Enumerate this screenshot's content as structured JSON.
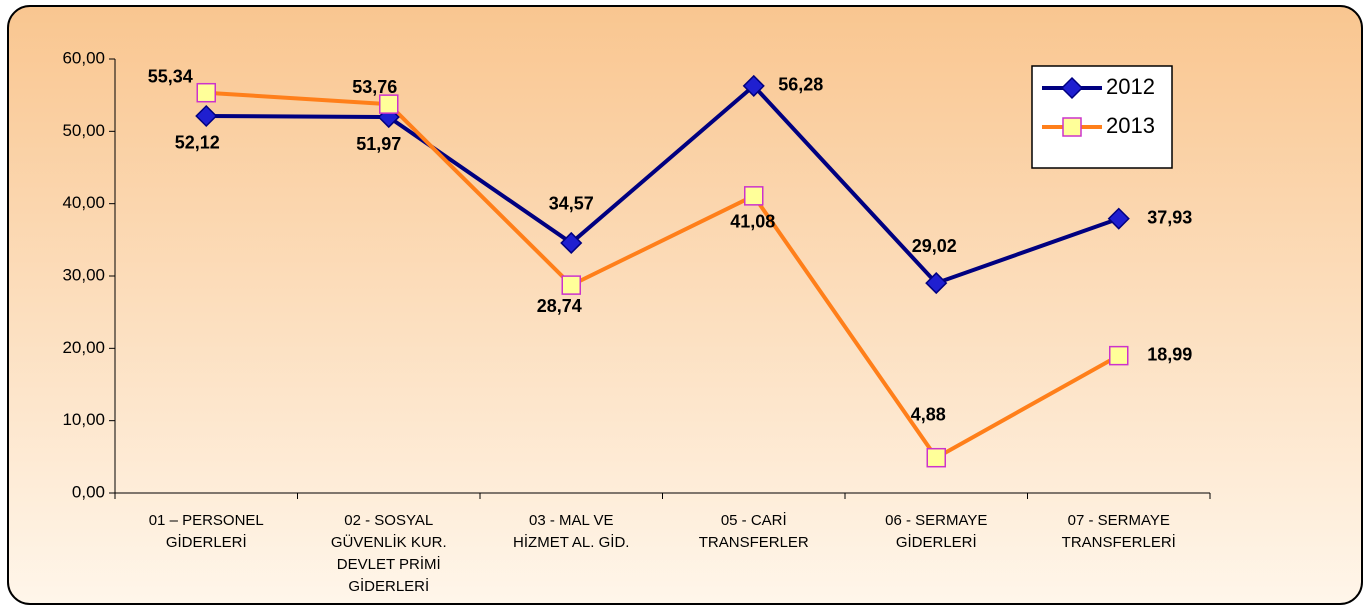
{
  "chart_data": {
    "type": "line",
    "categories": [
      "01 – PERSONEL\nGİDERLERİ",
      "02 - SOSYAL\nGÜVENLİK KUR.\nDEVLET PRİMİ\nGİDERLERİ",
      "03 - MAL VE\nHİZMET AL. GİD.",
      "05 - CARİ\nTRANSFERLER",
      "06 - SERMAYE\nGİDERLERİ",
      "07 - SERMAYE\nTRANSFERLERİ"
    ],
    "series": [
      {
        "name": "2012",
        "color": "#000080",
        "marker_color": "#1f1fd0",
        "values": [
          52.12,
          51.97,
          34.57,
          56.28,
          29.02,
          37.93
        ],
        "value_labels": [
          "52,12",
          "51,97",
          "34,57",
          "56,28",
          "29,02",
          "37,93"
        ]
      },
      {
        "name": "2013",
        "color": "#ff7f1a",
        "marker_color": "#ffff99",
        "values": [
          55.34,
          53.76,
          28.74,
          41.08,
          4.88,
          18.99
        ],
        "value_labels": [
          "55,34",
          "53,76",
          "28,74",
          "41,08",
          "4,88",
          "18,99"
        ]
      }
    ],
    "ylim": [
      0,
      60
    ],
    "yticks": [
      {
        "value": 0,
        "label": "0,00"
      },
      {
        "value": 10,
        "label": "10,00"
      },
      {
        "value": 20,
        "label": "20,00"
      },
      {
        "value": 30,
        "label": "30,00"
      },
      {
        "value": 40,
        "label": "40,00"
      },
      {
        "value": 50,
        "label": "50,00"
      },
      {
        "value": 60,
        "label": "60,00"
      }
    ],
    "grid": false,
    "legend": "upper right"
  }
}
